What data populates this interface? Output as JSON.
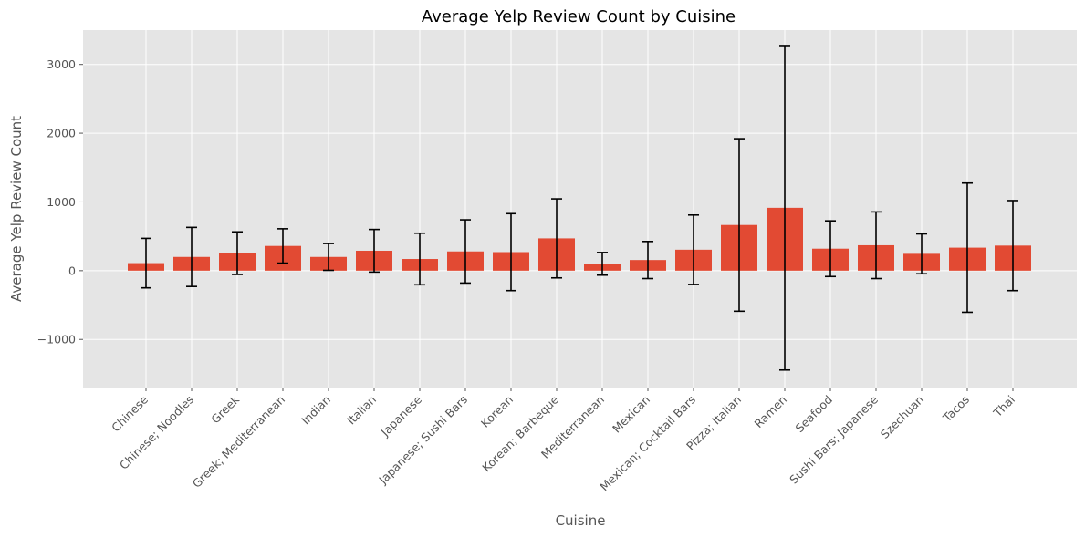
{
  "chart_data": {
    "type": "bar",
    "title": "Average Yelp Review Count by Cuisine",
    "xlabel": "Cuisine",
    "ylabel": "Average Yelp Review Count",
    "categories": [
      "Chinese",
      "Chinese; Noodles",
      "Greek",
      "Greek; Mediterranean",
      "Indian",
      "Italian",
      "Japanese",
      "Japanese; Sushi Bars",
      "Korean",
      "Korean; Barbeque",
      "Mediterranean",
      "Mexican",
      "Mexican; Cocktail Bars",
      "Pizza; Italian",
      "Ramen",
      "Seafood",
      "Sushi Bars; Japanese",
      "Szechuan",
      "Tacos",
      "Thai"
    ],
    "values": [
      110,
      200,
      255,
      360,
      200,
      290,
      170,
      280,
      270,
      470,
      100,
      155,
      305,
      665,
      915,
      320,
      370,
      245,
      335,
      365
    ],
    "error": [
      360,
      430,
      310,
      250,
      195,
      310,
      375,
      460,
      560,
      575,
      165,
      270,
      505,
      1255,
      2360,
      405,
      485,
      290,
      940,
      655
    ],
    "ylim": [
      -1700,
      3500
    ],
    "yticks": [
      -1000,
      0,
      1000,
      2000,
      3000
    ],
    "ytick_labels": [
      "−1000",
      "0",
      "1000",
      "2000",
      "3000"
    ],
    "grid": true,
    "style": "ggplot",
    "colors": {
      "bar": "#E24A33",
      "error_bar": "#000000",
      "plot_background": "#E5E5E5",
      "grid": "#FFFFFF",
      "text": "#555555"
    }
  }
}
